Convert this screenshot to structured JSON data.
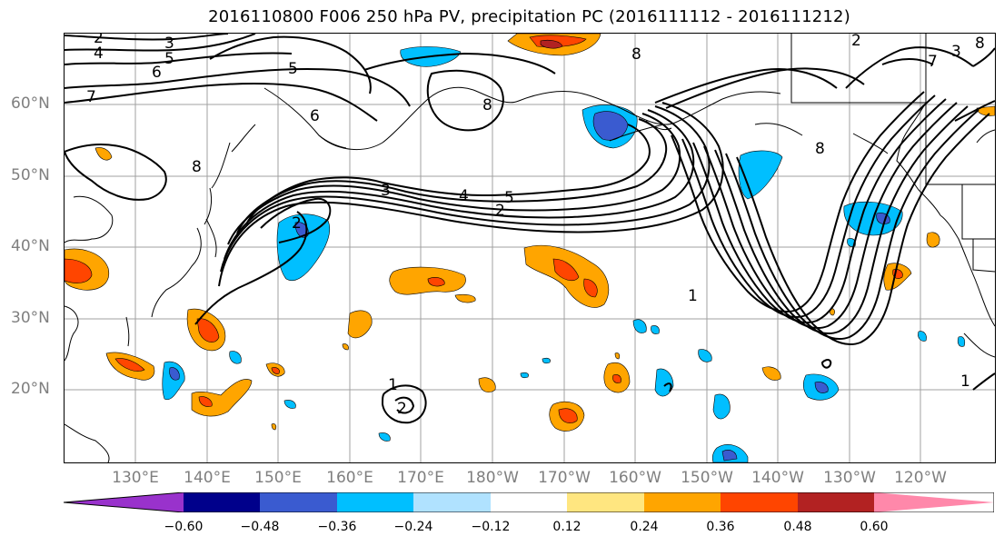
{
  "title": "2016110800 F006 250 hPa PV, precipitation PC (2016111112 - 2016111212)",
  "lat_labels": [
    "60°N",
    "50°N",
    "40°N",
    "30°N",
    "20°N"
  ],
  "lon_labels": [
    "130°E",
    "140°E",
    "150°E",
    "160°E",
    "170°E",
    "180°W",
    "170°W",
    "160°W",
    "150°W",
    "140°W",
    "130°W",
    "120°W"
  ],
  "colorbar": {
    "ticks": [
      "−0.60",
      "−0.48",
      "−0.36",
      "−0.24",
      "−0.12",
      "0.12",
      "0.24",
      "0.36",
      "0.48",
      "0.60"
    ],
    "colors": [
      "#9932cc",
      "#00008b",
      "#3a5bd0",
      "#00bfff",
      "#b0e2ff",
      "#ffffff",
      "#ffe680",
      "#ffa500",
      "#ff4500",
      "#b22222",
      "#ff88aa"
    ]
  },
  "contour_labels": [
    "2",
    "3",
    "4",
    "5",
    "6",
    "7",
    "5",
    "6",
    "8",
    "8",
    "8",
    "3",
    "4",
    "5",
    "2",
    "2",
    "1",
    "1",
    "2",
    "8",
    "2",
    "3",
    "7",
    "8",
    "1"
  ],
  "colors": {
    "contour": "#000000",
    "coast": "#000000",
    "grid": "#a0a0a0",
    "axis_label": "#7f7f7f"
  }
}
